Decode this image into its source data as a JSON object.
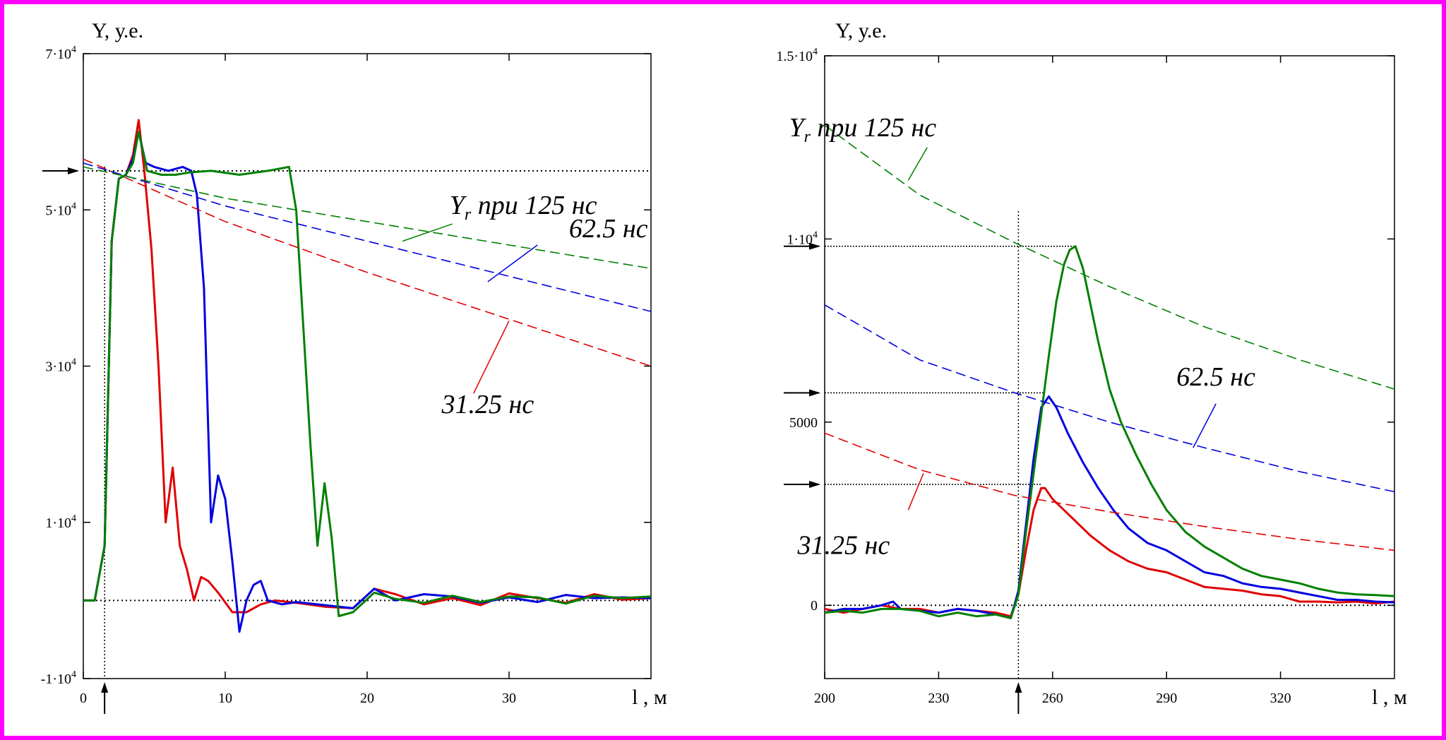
{
  "chart_data": [
    {
      "type": "line",
      "ylabel": "Y, у.е.",
      "xlabel": "l , м",
      "xlim": [
        0,
        40
      ],
      "ylim": [
        -10000,
        70000
      ],
      "x_ticks": [
        {
          "value": 0,
          "label": "0"
        },
        {
          "value": 10,
          "label": "10"
        },
        {
          "value": 20,
          "label": "20"
        },
        {
          "value": 30,
          "label": "30"
        }
      ],
      "y_ticks": [
        {
          "value": 70000,
          "mant": "7·10",
          "exp": "4"
        },
        {
          "value": 50000,
          "mant": "5·10",
          "exp": "4"
        },
        {
          "value": 30000,
          "mant": "3·10",
          "exp": "4"
        },
        {
          "value": 10000,
          "mant": "1·10",
          "exp": "4"
        },
        {
          "value": -10000,
          "mant": "-1·10",
          "exp": "4"
        }
      ],
      "ref_lines": {
        "y_levels": [
          55000,
          0
        ],
        "x_level": 1.5
      },
      "series": [
        {
          "color": "#e00000",
          "style": "solid",
          "x": [
            0,
            0.8,
            1.5,
            2.0,
            2.5,
            3.0,
            3.5,
            3.9,
            4.3,
            4.8,
            5.3,
            5.8,
            6.3,
            6.8,
            7.3,
            7.8,
            8.3,
            8.8,
            9.5,
            10.5,
            11.5,
            12.5,
            13.5,
            15,
            17,
            19,
            20.5,
            22,
            24,
            26,
            28,
            30,
            32,
            34,
            36,
            38,
            40
          ],
          "y": [
            0,
            0,
            7000,
            46000,
            54000,
            54500,
            57000,
            61500,
            55000,
            45000,
            30000,
            10000,
            17000,
            7000,
            4000,
            0,
            3000,
            2500,
            1000,
            -1500,
            -1500,
            -500,
            0,
            -300,
            -800,
            -1000,
            1500,
            800,
            -500,
            300,
            -600,
            900,
            300,
            -300,
            800,
            100,
            300
          ]
        },
        {
          "color": "#0000e0",
          "style": "solid",
          "x": [
            0,
            0.8,
            1.5,
            2.0,
            2.5,
            3.0,
            3.5,
            3.9,
            4.4,
            5.0,
            6.0,
            7.0,
            7.6,
            8.0,
            8.5,
            9.0,
            9.5,
            10.0,
            10.5,
            11.0,
            11.5,
            12.0,
            12.5,
            13.0,
            14.0,
            15,
            17,
            19,
            20.5,
            22,
            24,
            26,
            28,
            30,
            32,
            34,
            36,
            38,
            40
          ],
          "y": [
            0,
            0,
            7000,
            46000,
            54000,
            54500,
            56500,
            60000,
            56000,
            55500,
            55000,
            55500,
            55000,
            52000,
            40000,
            10000,
            16000,
            13000,
            5000,
            -4000,
            0,
            2000,
            2500,
            0,
            -500,
            -200,
            -600,
            -1000,
            1500,
            0,
            800,
            500,
            -300,
            400,
            -200,
            700,
            300,
            400,
            300
          ]
        },
        {
          "color": "#008000",
          "style": "solid",
          "x": [
            0,
            0.8,
            1.5,
            2.0,
            2.5,
            3.0,
            3.5,
            3.9,
            4.5,
            5.5,
            6.5,
            7.5,
            9,
            11,
            13,
            14.5,
            15.0,
            15.5,
            16.0,
            16.5,
            17.0,
            17.5,
            18.0,
            19.0,
            20.5,
            22,
            24,
            26,
            28,
            30,
            32,
            34,
            36,
            38,
            40
          ],
          "y": [
            0,
            0,
            7000,
            46000,
            54000,
            54500,
            56000,
            60000,
            55000,
            54500,
            54500,
            54800,
            55000,
            54500,
            55000,
            55500,
            50000,
            35000,
            20000,
            7000,
            15000,
            8000,
            -2000,
            -1500,
            1000,
            200,
            -300,
            600,
            -200,
            500,
            400,
            -400,
            600,
            300,
            500
          ]
        },
        {
          "color": "#e00000",
          "style": "dashed",
          "x": [
            0,
            10,
            20,
            30,
            40
          ],
          "y": [
            56500,
            48500,
            42000,
            36000,
            30000
          ]
        },
        {
          "color": "#0000e0",
          "style": "dashed",
          "x": [
            0,
            10,
            20,
            30,
            40
          ],
          "y": [
            56000,
            50500,
            46000,
            41500,
            37000
          ]
        },
        {
          "color": "#008000",
          "style": "dashed",
          "x": [
            0,
            10,
            20,
            30,
            40
          ],
          "y": [
            55500,
            51500,
            48500,
            45500,
            42500
          ]
        }
      ],
      "annotations": [
        {
          "id": "yr125",
          "text_main": "Y",
          "text_sub": "r",
          "text_rest": " при 125 нс",
          "color": "#008000",
          "x": 31,
          "y": 49500,
          "leader": [
            [
              22.5,
              46000
            ],
            [
              26,
              48200
            ]
          ]
        },
        {
          "id": "ns625",
          "text": "62.5 нс",
          "color": "#0000e0",
          "x": 37,
          "y": 46500,
          "leader": [
            [
              28.5,
              40800
            ],
            [
              32,
              45500
            ]
          ]
        },
        {
          "id": "ns3125",
          "text": "31.25 нс",
          "color": "#e00000",
          "x": 28.5,
          "y": 24000,
          "leader": [
            [
              27.5,
              26500
            ],
            [
              30,
              35800
            ]
          ]
        }
      ]
    },
    {
      "type": "line",
      "ylabel": "Y, у.е.",
      "xlabel": "l , м",
      "xlim": [
        200,
        350
      ],
      "ylim": [
        -2000,
        15000
      ],
      "x_ticks": [
        {
          "value": 200,
          "label": "200"
        },
        {
          "value": 230,
          "label": "230"
        },
        {
          "value": 260,
          "label": "260"
        },
        {
          "value": 290,
          "label": "290"
        },
        {
          "value": 320,
          "label": "320"
        }
      ],
      "y_ticks": [
        {
          "value": 15000,
          "mant": "1.5·10",
          "exp": "4"
        },
        {
          "value": 10000,
          "mant": "1·10",
          "exp": "4"
        },
        {
          "value": 5000,
          "label": "5000"
        },
        {
          "value": 0,
          "label": "0"
        }
      ],
      "ref_lines": {
        "y_levels": [
          0
        ],
        "x_level": 251,
        "arrow_levels": [
          9800,
          5800,
          3300
        ]
      },
      "series": [
        {
          "color": "#e00000",
          "style": "solid",
          "x": [
            200,
            205,
            210,
            215,
            220,
            225,
            230,
            235,
            240,
            245,
            249,
            251,
            253,
            255,
            257,
            258,
            260,
            263,
            266,
            270,
            275,
            280,
            285,
            290,
            295,
            300,
            305,
            310,
            315,
            320,
            325,
            330,
            335,
            340,
            345,
            350
          ],
          "y": [
            -100,
            -200,
            -100,
            0,
            -100,
            -100,
            -200,
            -100,
            -150,
            -200,
            -300,
            300,
            1500,
            2600,
            3200,
            3200,
            2900,
            2600,
            2300,
            1900,
            1500,
            1200,
            1000,
            900,
            700,
            500,
            450,
            400,
            300,
            250,
            100,
            100,
            80,
            100,
            50,
            100
          ]
        },
        {
          "color": "#0000e0",
          "style": "solid",
          "x": [
            200,
            205,
            210,
            215,
            218,
            220,
            225,
            230,
            235,
            240,
            245,
            249,
            251,
            253,
            255,
            257,
            259,
            261,
            264,
            268,
            272,
            276,
            280,
            285,
            290,
            295,
            300,
            305,
            310,
            315,
            320,
            325,
            330,
            335,
            340,
            345,
            350
          ],
          "y": [
            -200,
            -100,
            -100,
            0,
            100,
            -100,
            -150,
            -200,
            -100,
            -150,
            -250,
            -350,
            400,
            2200,
            4000,
            5400,
            5700,
            5400,
            4700,
            3900,
            3200,
            2600,
            2100,
            1700,
            1500,
            1200,
            900,
            800,
            600,
            500,
            450,
            350,
            250,
            150,
            150,
            100,
            80
          ]
        },
        {
          "color": "#008000",
          "style": "solid",
          "x": [
            200,
            205,
            210,
            215,
            220,
            225,
            230,
            235,
            240,
            245,
            249,
            251,
            253,
            255,
            257,
            259,
            261,
            263,
            264.5,
            266,
            268,
            270,
            272,
            275,
            278,
            282,
            286,
            290,
            295,
            300,
            305,
            310,
            315,
            320,
            325,
            330,
            335,
            340,
            345,
            350
          ],
          "y": [
            -200,
            -150,
            -200,
            -100,
            -100,
            -150,
            -300,
            -200,
            -300,
            -250,
            -350,
            300,
            2000,
            3600,
            5200,
            6800,
            8300,
            9300,
            9700,
            9800,
            9200,
            8200,
            7200,
            5900,
            5000,
            4100,
            3300,
            2600,
            2000,
            1600,
            1300,
            1000,
            800,
            700,
            600,
            450,
            350,
            300,
            280,
            250
          ]
        },
        {
          "color": "#e00000",
          "style": "dashed",
          "x": [
            200,
            225,
            250,
            275,
            300,
            325,
            350
          ],
          "y": [
            4700,
            3700,
            3000,
            2550,
            2150,
            1800,
            1500
          ]
        },
        {
          "color": "#0000e0",
          "style": "dashed",
          "x": [
            200,
            225,
            250,
            275,
            300,
            325,
            350
          ],
          "y": [
            8200,
            6700,
            5800,
            5000,
            4300,
            3650,
            3100
          ]
        },
        {
          "color": "#008000",
          "style": "dashed",
          "x": [
            200,
            225,
            250,
            275,
            300,
            325,
            350
          ],
          "y": [
            13100,
            11200,
            9900,
            8700,
            7600,
            6700,
            5900
          ]
        }
      ],
      "annotations": [
        {
          "id": "yr125",
          "text_main": "Y",
          "text_sub": "r",
          "text_rest": " при 125 нс",
          "color": "#008000",
          "x": 210,
          "y": 12800,
          "leader": [
            [
              222,
              11600
            ],
            [
              227,
              12500
            ]
          ]
        },
        {
          "id": "ns625",
          "text": "62.5 нс",
          "color": "#0000e0",
          "x": 303,
          "y": 6000,
          "leader": [
            [
              297,
              4300
            ],
            [
              303,
              5500
            ]
          ]
        },
        {
          "id": "ns3125",
          "text": "31.25 нс",
          "color": "#e00000",
          "x": 205,
          "y": 1400,
          "leader": [
            [
              222,
              2600
            ],
            [
              226,
              3600
            ]
          ]
        }
      ]
    }
  ]
}
